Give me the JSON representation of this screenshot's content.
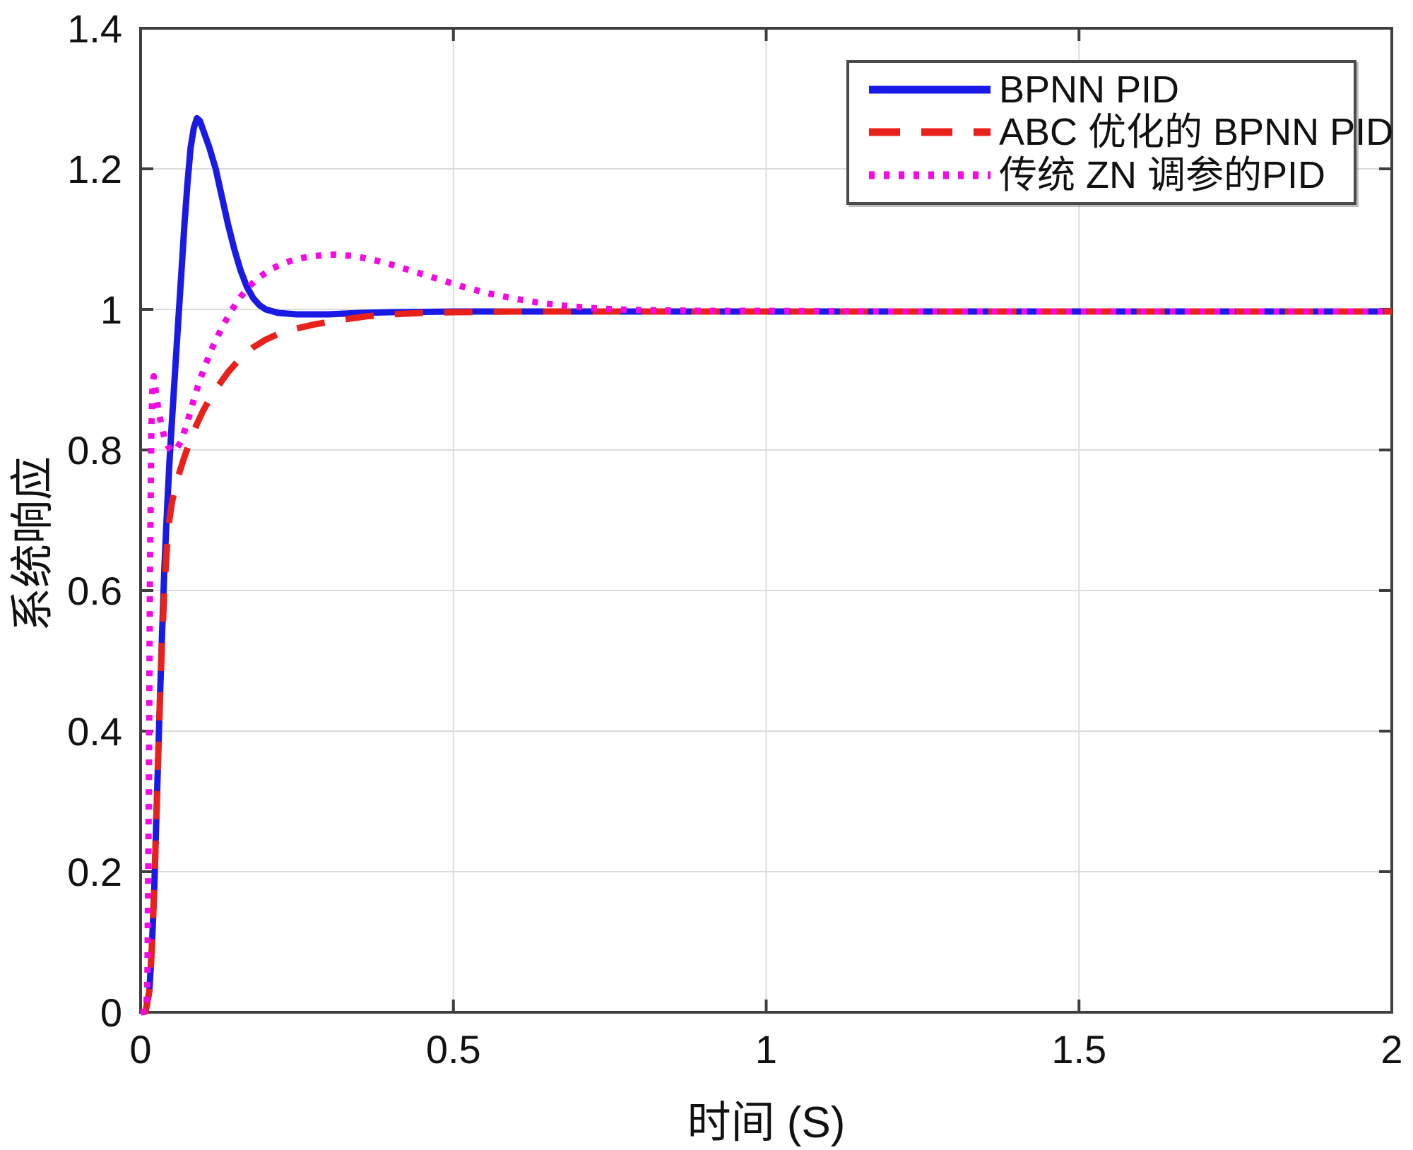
{
  "figure": {
    "background": "#ffffff"
  },
  "chart_data": {
    "type": "line",
    "title": "",
    "xlabel": "时间 (S)",
    "ylabel": "系统响应",
    "xlim": [
      0,
      2
    ],
    "ylim": [
      0,
      1.4
    ],
    "grid": true,
    "legend_position": "top-right",
    "axis_color": "#3f3f3f",
    "grid_color": "#dcdcdc",
    "tick_label_color": "#111111",
    "x_ticks": {
      "values": [
        0,
        0.5,
        1,
        1.5,
        2
      ],
      "labels": [
        "0",
        "0.5",
        "1",
        "1.5",
        "2"
      ]
    },
    "y_ticks": {
      "values": [
        0,
        0.2,
        0.4,
        0.6,
        0.8,
        1,
        1.2,
        1.4
      ],
      "labels": [
        "0",
        "0.2",
        "0.4",
        "0.6",
        "0.8",
        "1",
        "1.2",
        "1.4"
      ]
    },
    "series": [
      {
        "name": "BPNN PID",
        "color": "#1a1ae6",
        "style": "solid",
        "overshoot_peak": {
          "t": 0.09,
          "value": 1.27
        },
        "settling_value": 1.0,
        "points": [
          [
            0,
            0
          ],
          [
            0.008,
            0.001
          ],
          [
            0.014,
            0.03
          ],
          [
            0.018,
            0.09
          ],
          [
            0.022,
            0.18
          ],
          [
            0.026,
            0.3
          ],
          [
            0.03,
            0.42
          ],
          [
            0.034,
            0.53
          ],
          [
            0.038,
            0.63
          ],
          [
            0.042,
            0.71
          ],
          [
            0.046,
            0.78
          ],
          [
            0.05,
            0.84
          ],
          [
            0.055,
            0.91
          ],
          [
            0.06,
            0.98
          ],
          [
            0.065,
            1.05
          ],
          [
            0.07,
            1.12
          ],
          [
            0.075,
            1.18
          ],
          [
            0.08,
            1.23
          ],
          [
            0.085,
            1.258
          ],
          [
            0.09,
            1.272
          ],
          [
            0.095,
            1.268
          ],
          [
            0.1,
            1.255
          ],
          [
            0.11,
            1.23
          ],
          [
            0.12,
            1.2
          ],
          [
            0.13,
            1.16
          ],
          [
            0.14,
            1.12
          ],
          [
            0.15,
            1.085
          ],
          [
            0.16,
            1.055
          ],
          [
            0.17,
            1.032
          ],
          [
            0.18,
            1.016
          ],
          [
            0.19,
            1.006
          ],
          [
            0.2,
            1.0
          ],
          [
            0.22,
            0.995
          ],
          [
            0.25,
            0.993
          ],
          [
            0.3,
            0.993
          ],
          [
            0.35,
            0.995
          ],
          [
            0.4,
            0.996
          ],
          [
            0.5,
            0.997
          ],
          [
            0.75,
            0.997
          ],
          [
            1,
            0.997
          ],
          [
            1.25,
            0.997
          ],
          [
            1.5,
            0.997
          ],
          [
            1.75,
            0.997
          ],
          [
            2,
            0.997
          ]
        ]
      },
      {
        "name": "ABC 优化的 BPNN PID",
        "color": "#e8211a",
        "style": "dashed",
        "overshoot_peak": null,
        "settling_value": 1.0,
        "points": [
          [
            0,
            0
          ],
          [
            0.008,
            0.001
          ],
          [
            0.014,
            0.03
          ],
          [
            0.018,
            0.09
          ],
          [
            0.022,
            0.18
          ],
          [
            0.026,
            0.3
          ],
          [
            0.03,
            0.42
          ],
          [
            0.034,
            0.52
          ],
          [
            0.038,
            0.6
          ],
          [
            0.042,
            0.66
          ],
          [
            0.046,
            0.7
          ],
          [
            0.05,
            0.725
          ],
          [
            0.055,
            0.745
          ],
          [
            0.06,
            0.762
          ],
          [
            0.07,
            0.79
          ],
          [
            0.08,
            0.815
          ],
          [
            0.09,
            0.837
          ],
          [
            0.1,
            0.856
          ],
          [
            0.11,
            0.872
          ],
          [
            0.12,
            0.886
          ],
          [
            0.14,
            0.911
          ],
          [
            0.16,
            0.931
          ],
          [
            0.18,
            0.946
          ],
          [
            0.2,
            0.957
          ],
          [
            0.22,
            0.965
          ],
          [
            0.25,
            0.973
          ],
          [
            0.28,
            0.979
          ],
          [
            0.32,
            0.985
          ],
          [
            0.36,
            0.99
          ],
          [
            0.4,
            0.993
          ],
          [
            0.45,
            0.995
          ],
          [
            0.5,
            0.996
          ],
          [
            0.6,
            0.997
          ],
          [
            0.75,
            0.997
          ],
          [
            1,
            0.997
          ],
          [
            1.25,
            0.997
          ],
          [
            1.5,
            0.997
          ],
          [
            1.75,
            0.997
          ],
          [
            2,
            0.997
          ]
        ]
      },
      {
        "name": "传统 ZN 调参的PID",
        "color": "#f607e4",
        "style": "dotted",
        "overshoot_peak": {
          "t": 0.31,
          "value": 1.078
        },
        "settling_value": 1.0,
        "points": [
          [
            0,
            0
          ],
          [
            0.009,
            0.001
          ],
          [
            0.011,
            0.05
          ],
          [
            0.013,
            0.3
          ],
          [
            0.015,
            0.62
          ],
          [
            0.017,
            0.82
          ],
          [
            0.019,
            0.89
          ],
          [
            0.021,
            0.905
          ],
          [
            0.024,
            0.885
          ],
          [
            0.028,
            0.86
          ],
          [
            0.033,
            0.836
          ],
          [
            0.038,
            0.818
          ],
          [
            0.044,
            0.805
          ],
          [
            0.05,
            0.798
          ],
          [
            0.057,
            0.801
          ],
          [
            0.065,
            0.813
          ],
          [
            0.075,
            0.84
          ],
          [
            0.085,
            0.872
          ],
          [
            0.095,
            0.9
          ],
          [
            0.105,
            0.924
          ],
          [
            0.115,
            0.946
          ],
          [
            0.125,
            0.965
          ],
          [
            0.135,
            0.982
          ],
          [
            0.145,
            0.998
          ],
          [
            0.16,
            1.018
          ],
          [
            0.175,
            1.034
          ],
          [
            0.19,
            1.046
          ],
          [
            0.21,
            1.058
          ],
          [
            0.23,
            1.066
          ],
          [
            0.25,
            1.072
          ],
          [
            0.27,
            1.075
          ],
          [
            0.29,
            1.077
          ],
          [
            0.31,
            1.078
          ],
          [
            0.34,
            1.076
          ],
          [
            0.37,
            1.071
          ],
          [
            0.4,
            1.064
          ],
          [
            0.44,
            1.053
          ],
          [
            0.48,
            1.042
          ],
          [
            0.52,
            1.031
          ],
          [
            0.56,
            1.022
          ],
          [
            0.6,
            1.015
          ],
          [
            0.64,
            1.009
          ],
          [
            0.68,
            1.005
          ],
          [
            0.72,
            1.002
          ],
          [
            0.76,
            1.0
          ],
          [
            0.8,
            0.999
          ],
          [
            0.9,
            0.998
          ],
          [
            1,
            0.998
          ],
          [
            1.2,
            0.997
          ],
          [
            1.5,
            0.997
          ],
          [
            2,
            0.997
          ]
        ]
      }
    ]
  }
}
